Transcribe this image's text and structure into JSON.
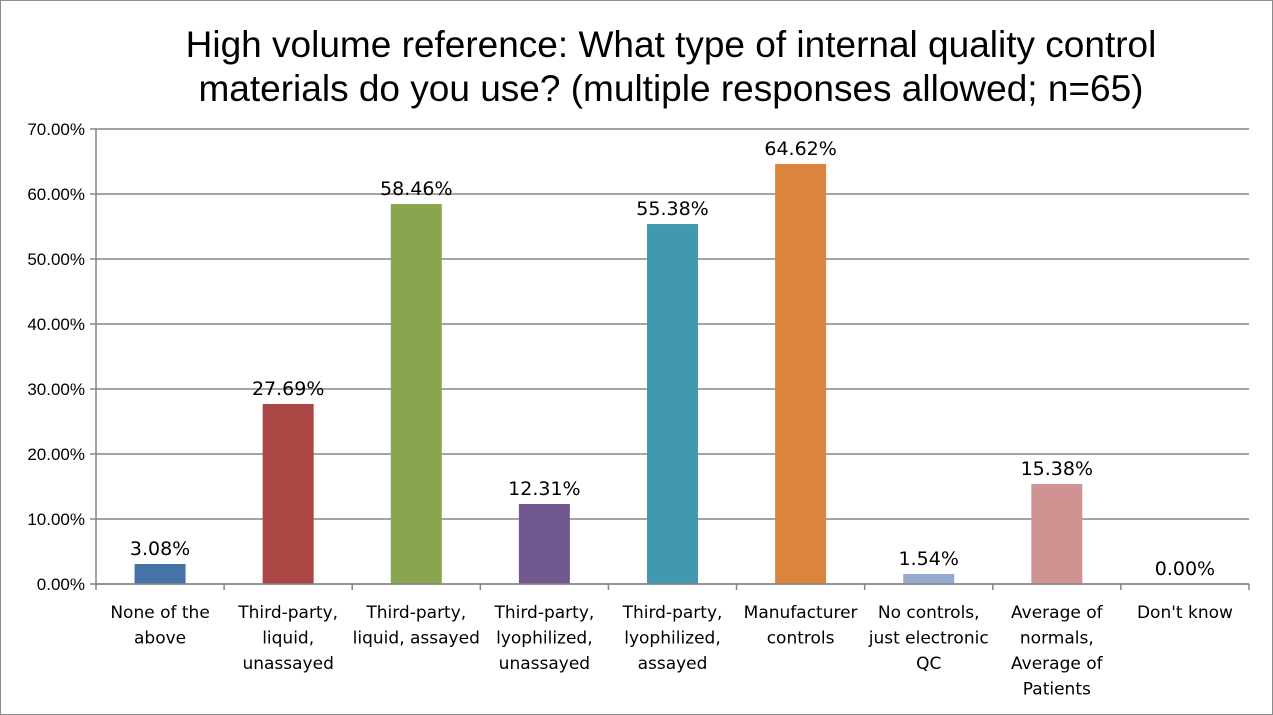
{
  "chart_data": {
    "type": "bar",
    "title_lines": [
      "High volume reference: What type of internal quality control",
      "materials do you use? (multiple responses allowed; n=65)"
    ],
    "categories": [
      [
        "None of the",
        "above"
      ],
      [
        "Third-party,",
        "liquid,",
        "unassayed"
      ],
      [
        "Third-party,",
        "liquid, assayed"
      ],
      [
        "Third-party,",
        "lyophilized,",
        "unassayed"
      ],
      [
        "Third-party,",
        "lyophilized,",
        "assayed"
      ],
      [
        "Manufacturer",
        "controls"
      ],
      [
        "No controls,",
        "just electronic",
        "QC"
      ],
      [
        "Average of",
        "normals,",
        "Average of",
        "Patients"
      ],
      [
        "Don't know"
      ]
    ],
    "values": [
      3.08,
      27.69,
      58.46,
      12.31,
      55.38,
      64.62,
      1.54,
      15.38,
      0.0
    ],
    "value_labels": [
      "3.08%",
      "27.69%",
      "58.46%",
      "12.31%",
      "55.38%",
      "64.62%",
      "1.54%",
      "15.38%",
      "0.00%"
    ],
    "colors": [
      "#4572a7",
      "#aa4643",
      "#89a54e",
      "#71588f",
      "#4198af",
      "#db843d",
      "#93a9cf",
      "#d19392",
      "#4572a7"
    ],
    "ylim": [
      0,
      70
    ],
    "yticks": [
      "0.00%",
      "10.00%",
      "20.00%",
      "30.00%",
      "40.00%",
      "50.00%",
      "60.00%",
      "70.00%"
    ],
    "xlabel": "",
    "ylabel": "",
    "grid": true,
    "legend": "none"
  }
}
